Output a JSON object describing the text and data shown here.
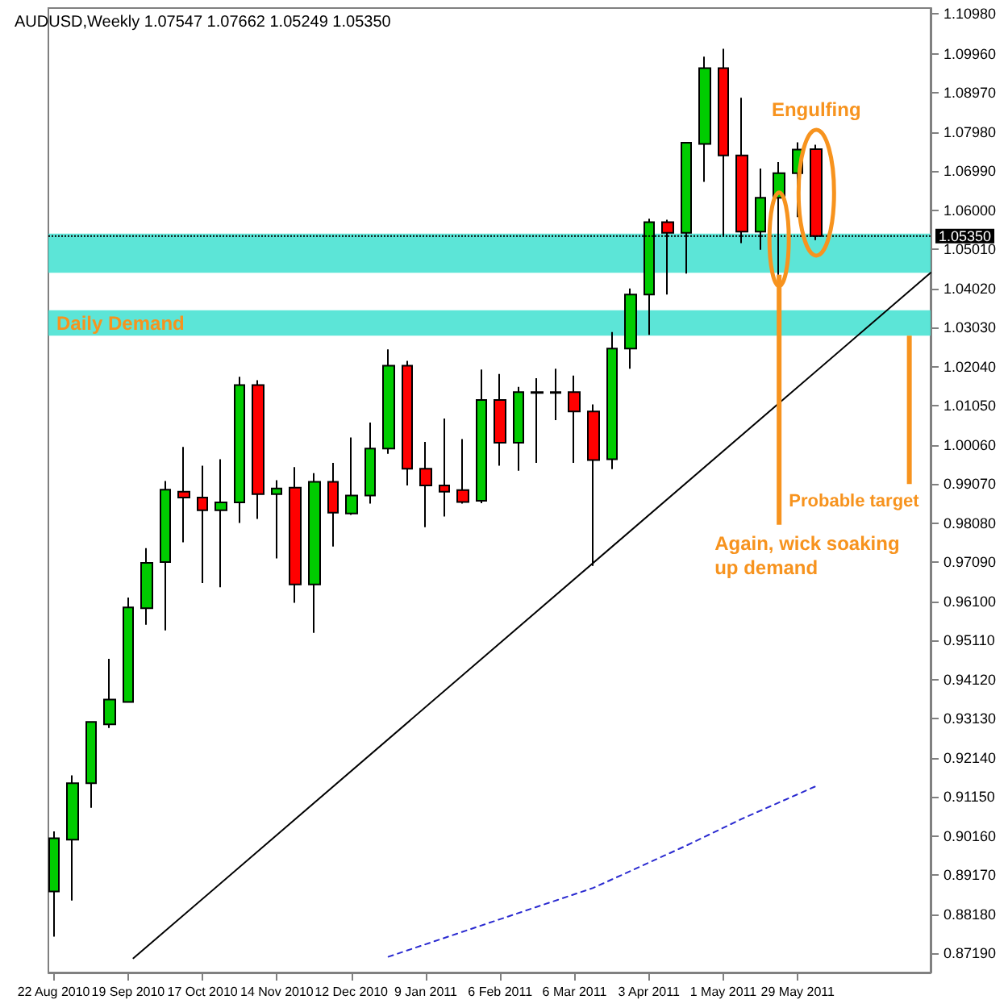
{
  "chart_data": {
    "type": "candlestick",
    "title": "AUDUSD,Weekly 1.07547 1.07662 1.05249 1.05350",
    "marker": "none",
    "xlim": [
      "2010-08-20",
      "2011-07-18"
    ],
    "xticks": [
      {
        "value": "2010-08-22",
        "label": "22 Aug 2010"
      },
      {
        "value": "2010-09-19",
        "label": "19 Sep 2010"
      },
      {
        "value": "2010-10-17",
        "label": "17 Oct 2010"
      },
      {
        "value": "2010-11-14",
        "label": "14 Nov 2010"
      },
      {
        "value": "2010-12-12",
        "label": "12 Dec 2010"
      },
      {
        "value": "2011-01-09",
        "label": "9 Jan 2011"
      },
      {
        "value": "2011-02-06",
        "label": "6 Feb 2011"
      },
      {
        "value": "2011-03-06",
        "label": "6 Mar 2011"
      },
      {
        "value": "2011-04-03",
        "label": "3 Apr 2011"
      },
      {
        "value": "2011-05-01",
        "label": "1 May 2011"
      },
      {
        "value": "2011-05-29",
        "label": "29 May 2011"
      }
    ],
    "ylim": [
      0.8671,
      1.1112
    ],
    "yticks": [
      {
        "value": 1.1098,
        "label": "1.10980"
      },
      {
        "value": 1.0996,
        "label": "1.09960"
      },
      {
        "value": 1.0897,
        "label": "1.08970"
      },
      {
        "value": 1.0798,
        "label": "1.07980"
      },
      {
        "value": 1.0699,
        "label": "1.06990"
      },
      {
        "value": 1.06,
        "label": "1.06000"
      },
      {
        "value": 1.0501,
        "label": "1.05010"
      },
      {
        "value": 1.0402,
        "label": "1.04020"
      },
      {
        "value": 1.0303,
        "label": "1.03030"
      },
      {
        "value": 1.0204,
        "label": "1.02040"
      },
      {
        "value": 1.0105,
        "label": "1.01050"
      },
      {
        "value": 1.0006,
        "label": "1.00060"
      },
      {
        "value": 0.9907,
        "label": "0.99070"
      },
      {
        "value": 0.9808,
        "label": "0.98080"
      },
      {
        "value": 0.9709,
        "label": "0.97090"
      },
      {
        "value": 0.961,
        "label": "0.96100"
      },
      {
        "value": 0.9511,
        "label": "0.95110"
      },
      {
        "value": 0.9412,
        "label": "0.94120"
      },
      {
        "value": 0.9313,
        "label": "0.93130"
      },
      {
        "value": 0.9214,
        "label": "0.92140"
      },
      {
        "value": 0.9115,
        "label": "0.91150"
      },
      {
        "value": 0.9016,
        "label": "0.90160"
      },
      {
        "value": 0.8917,
        "label": "0.89170"
      },
      {
        "value": 0.8818,
        "label": "0.88180"
      },
      {
        "value": 0.8719,
        "label": "0.87190"
      }
    ],
    "series": [
      {
        "type": "candlestick",
        "x": [
          "2010-08-22",
          "2010-08-29",
          "2010-09-05",
          "2010-09-12",
          "2010-09-19",
          "2010-09-26",
          "2010-10-03",
          "2010-10-10",
          "2010-10-17",
          "2010-10-24",
          "2010-10-31",
          "2010-11-07",
          "2010-11-14",
          "2010-11-21",
          "2010-11-28",
          "2010-12-05",
          "2010-12-12",
          "2010-12-19",
          "2010-12-26",
          "2011-01-02",
          "2011-01-09",
          "2011-01-16",
          "2011-01-23",
          "2011-01-30",
          "2011-02-06",
          "2011-02-13",
          "2011-02-20",
          "2011-02-27",
          "2011-03-06",
          "2011-03-13",
          "2011-03-20",
          "2011-03-27",
          "2011-04-03",
          "2011-04-10",
          "2011-04-17",
          "2011-04-24",
          "2011-05-01",
          "2011-05-08",
          "2011-05-15",
          "2011-05-22",
          "2011-05-29",
          "2011-06-05"
        ],
        "ohlc": [
          [
            0.8876,
            0.9028,
            0.8762,
            0.9011
          ],
          [
            0.9007,
            0.917,
            0.8853,
            0.915
          ],
          [
            0.915,
            0.9305,
            0.9088,
            0.9305
          ],
          [
            0.9299,
            0.9465,
            0.929,
            0.9362
          ],
          [
            0.9356,
            0.962,
            0.9354,
            0.9595
          ],
          [
            0.9593,
            0.9745,
            0.9551,
            0.9708
          ],
          [
            0.971,
            0.9915,
            0.9537,
            0.9893
          ],
          [
            0.9888,
            1.0001,
            0.976,
            0.9873
          ],
          [
            0.9873,
            0.9954,
            0.9657,
            0.9841
          ],
          [
            0.9841,
            0.997,
            0.9646,
            0.9861
          ],
          [
            0.9861,
            1.0179,
            0.9809,
            1.0158
          ],
          [
            1.0158,
            1.017,
            0.9819,
            0.9882
          ],
          [
            0.9882,
            0.9917,
            0.9719,
            0.9896
          ],
          [
            0.9898,
            0.995,
            0.9607,
            0.9653
          ],
          [
            0.9653,
            0.9935,
            0.9531,
            0.9913
          ],
          [
            0.9913,
            0.9961,
            0.9749,
            0.9835
          ],
          [
            0.9833,
            1.0025,
            0.9829,
            0.9878
          ],
          [
            0.9878,
            1.0063,
            0.9858,
            0.9997
          ],
          [
            0.9997,
            1.0248,
            0.9984,
            1.0207
          ],
          [
            1.0207,
            1.0219,
            0.9904,
            0.9946
          ],
          [
            0.9946,
            1.0014,
            0.9798,
            0.9904
          ],
          [
            0.9904,
            1.0073,
            0.9825,
            0.9888
          ],
          [
            0.9892,
            1.0021,
            0.9858,
            0.9862
          ],
          [
            0.9865,
            1.0197,
            0.9859,
            1.012
          ],
          [
            1.012,
            1.0186,
            0.9954,
            1.0012
          ],
          [
            1.0012,
            1.0153,
            0.9941,
            1.014
          ],
          [
            1.014,
            1.0175,
            0.9961,
            1.0138
          ],
          [
            1.014,
            1.0199,
            1.0069,
            1.0138
          ],
          [
            1.014,
            1.0182,
            0.9961,
            1.0091
          ],
          [
            1.0091,
            1.0109,
            0.97,
            0.9968
          ],
          [
            0.997,
            1.0292,
            0.9945,
            1.025
          ],
          [
            1.025,
            1.0402,
            1.0199,
            1.0387
          ],
          [
            1.0387,
            1.0579,
            1.0285,
            1.057
          ],
          [
            1.057,
            1.0576,
            1.0387,
            1.0543
          ],
          [
            1.0543,
            1.0771,
            1.044,
            1.0771
          ],
          [
            1.0768,
            1.0989,
            1.0672,
            1.096
          ],
          [
            1.096,
            1.1009,
            1.0533,
            1.0739
          ],
          [
            1.0739,
            1.0885,
            1.0517,
            1.0546
          ],
          [
            1.0546,
            1.0706,
            1.05,
            1.0632
          ],
          [
            1.0632,
            1.0722,
            1.0437,
            1.0694
          ],
          [
            1.0694,
            1.0772,
            1.0583,
            1.0754
          ],
          [
            1.07547,
            1.07662,
            1.05249,
            1.0535
          ]
        ],
        "colors": [
          "#00cc00",
          "#00cc00",
          "#00cc00",
          "#00cc00",
          "#00cc00",
          "#00cc00",
          "#00cc00",
          "#ff0000",
          "#ff0000",
          "#00cc00",
          "#00cc00",
          "#ff0000",
          "#00cc00",
          "#ff0000",
          "#00cc00",
          "#ff0000",
          "#00cc00",
          "#00cc00",
          "#00cc00",
          "#ff0000",
          "#ff0000",
          "#ff0000",
          "#ff0000",
          "#00cc00",
          "#ff0000",
          "#00cc00",
          "#ff0000",
          "#ff0000",
          "#ff0000",
          "#ff0000",
          "#00cc00",
          "#00cc00",
          "#00cc00",
          "#ff0000",
          "#00cc00",
          "#00cc00",
          "#ff0000",
          "#ff0000",
          "#00cc00",
          "#00cc00",
          "#00cc00",
          "#ff0000"
        ]
      },
      {
        "type": "line",
        "x": [
          "2010-09-21",
          "2011-07-18"
        ],
        "values": [
          0.8707,
          1.0442
        ],
        "color": "#000000",
        "line_style": "solid"
      },
      {
        "type": "line",
        "x": [
          "2010-12-26",
          "2011-02-06",
          "2011-03-13",
          "2011-04-17",
          "2011-05-08",
          "2011-06-05"
        ],
        "values": [
          0.8711,
          0.8806,
          0.8885,
          0.8992,
          0.906,
          0.9143
        ],
        "color": "#2a2ad0",
        "line_style": "dashed"
      }
    ],
    "bands": [
      {
        "axis": "y",
        "from": 1.0442,
        "to": 1.0541,
        "color": "#40e0d0"
      },
      {
        "axis": "y",
        "from": 1.0283,
        "to": 1.0347,
        "label": "Daily Demand",
        "color": "#40e0d0"
      }
    ],
    "ref_lines": [
      {
        "axis": "y",
        "value": 1.0535,
        "label": "1.05350"
      }
    ],
    "annotations": [
      "Engulfing",
      {
        "text": "Again, wick soaking up demand",
        "x": "2011-05-22",
        "y": 1.0437
      },
      {
        "text": "Probable target",
        "x": "2011-07-10",
        "y": 1.0283
      }
    ]
  }
}
